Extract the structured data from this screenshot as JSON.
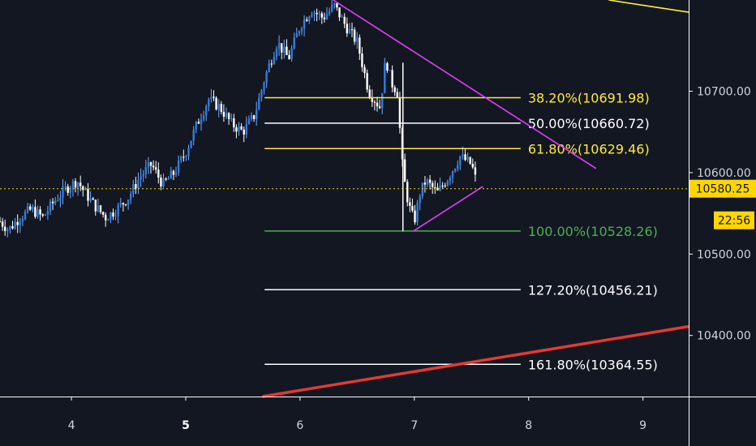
{
  "chart_data": {
    "type": "candlestick",
    "instrument_colors": {
      "background": "#131722",
      "candle_up": "#2962ff",
      "candle_down": "#ffffff",
      "candle_body": "#4a90d9"
    },
    "price_axis": {
      "ticks": [
        "10700.00",
        "10600.00",
        "10500.00",
        "10400.00"
      ],
      "tick_values": [
        10700,
        10600,
        10500,
        10400
      ],
      "ylim": [
        10325,
        10812
      ]
    },
    "time_axis": {
      "ticks": [
        {
          "label": "4",
          "value": 4,
          "bold": false
        },
        {
          "label": "5",
          "value": 5,
          "bold": true
        },
        {
          "label": "6",
          "value": 6,
          "bold": false
        },
        {
          "label": "7",
          "value": 7,
          "bold": false
        },
        {
          "label": "8",
          "value": 8,
          "bold": false
        },
        {
          "label": "9",
          "value": 9,
          "bold": false
        }
      ],
      "xlim": [
        3.375,
        9.4
      ]
    },
    "current_price": {
      "value": 10580.25,
      "label": "10580.25",
      "countdown": "22:56",
      "color": "#ffd600"
    },
    "fibonacci": {
      "x_start": 5.69,
      "x_end": 7.93,
      "levels": [
        {
          "label": "38.20%(10691.98)",
          "price": 10691.98,
          "color": "#ffeb3b"
        },
        {
          "label": "50.00%(10660.72)",
          "price": 10660.72,
          "color": "#ffffff"
        },
        {
          "label": "61.80%(10629.46)",
          "price": 10629.46,
          "color": "#ffeb3b"
        },
        {
          "label": "100.00%(10528.26)",
          "price": 10528.26,
          "color": "#4caf50"
        },
        {
          "label": "127.20%(10456.21)",
          "price": 10456.21,
          "color": "#ffffff"
        },
        {
          "label": "161.80%(10364.55)",
          "price": 10364.55,
          "color": "#ffffff"
        }
      ]
    },
    "trendlines": [
      {
        "name": "triangle-upper",
        "color": "#e040fb",
        "points": [
          [
            6.29,
            10812
          ],
          [
            8.59,
            10605
          ]
        ]
      },
      {
        "name": "triangle-lower",
        "color": "#e040fb",
        "points": [
          [
            6.99,
            10528
          ],
          [
            7.6,
            10583
          ]
        ]
      },
      {
        "name": "red-support",
        "color": "#e53935",
        "points": [
          [
            5.67,
            10325
          ],
          [
            9.4,
            10411
          ]
        ]
      },
      {
        "name": "yellow-resistance",
        "color": "#ffeb3b",
        "points": [
          [
            8.7,
            10812
          ],
          [
            9.4,
            10797
          ]
        ]
      },
      {
        "name": "fib-drop-line",
        "color": "#ffffff",
        "points": [
          [
            6.9,
            10735
          ],
          [
            6.9,
            10528
          ]
        ]
      }
    ],
    "price_path": {
      "x": [
        3.375,
        3.45,
        3.55,
        3.65,
        3.75,
        3.85,
        3.95,
        4.05,
        4.12,
        4.2,
        4.3,
        4.4,
        4.5,
        4.6,
        4.7,
        4.8,
        4.9,
        5.0,
        5.1,
        5.2,
        5.3,
        5.4,
        5.5,
        5.6,
        5.7,
        5.8,
        5.9,
        6.0,
        6.1,
        6.2,
        6.3,
        6.4,
        6.5,
        6.6,
        6.7,
        6.75,
        6.8,
        6.85,
        6.9,
        6.95,
        7.0,
        7.05,
        7.1,
        7.2,
        7.3,
        7.4,
        7.5,
        7.55
      ],
      "y": [
        10540,
        10530,
        10545,
        10555,
        10545,
        10565,
        10580,
        10590,
        10575,
        10560,
        10545,
        10555,
        10570,
        10595,
        10610,
        10585,
        10600,
        10625,
        10660,
        10690,
        10680,
        10660,
        10650,
        10670,
        10720,
        10760,
        10740,
        10780,
        10800,
        10790,
        10805,
        10780,
        10760,
        10700,
        10680,
        10740,
        10710,
        10700,
        10600,
        10560,
        10540,
        10575,
        10590,
        10575,
        10595,
        10620,
        10610,
        10585
      ]
    }
  }
}
